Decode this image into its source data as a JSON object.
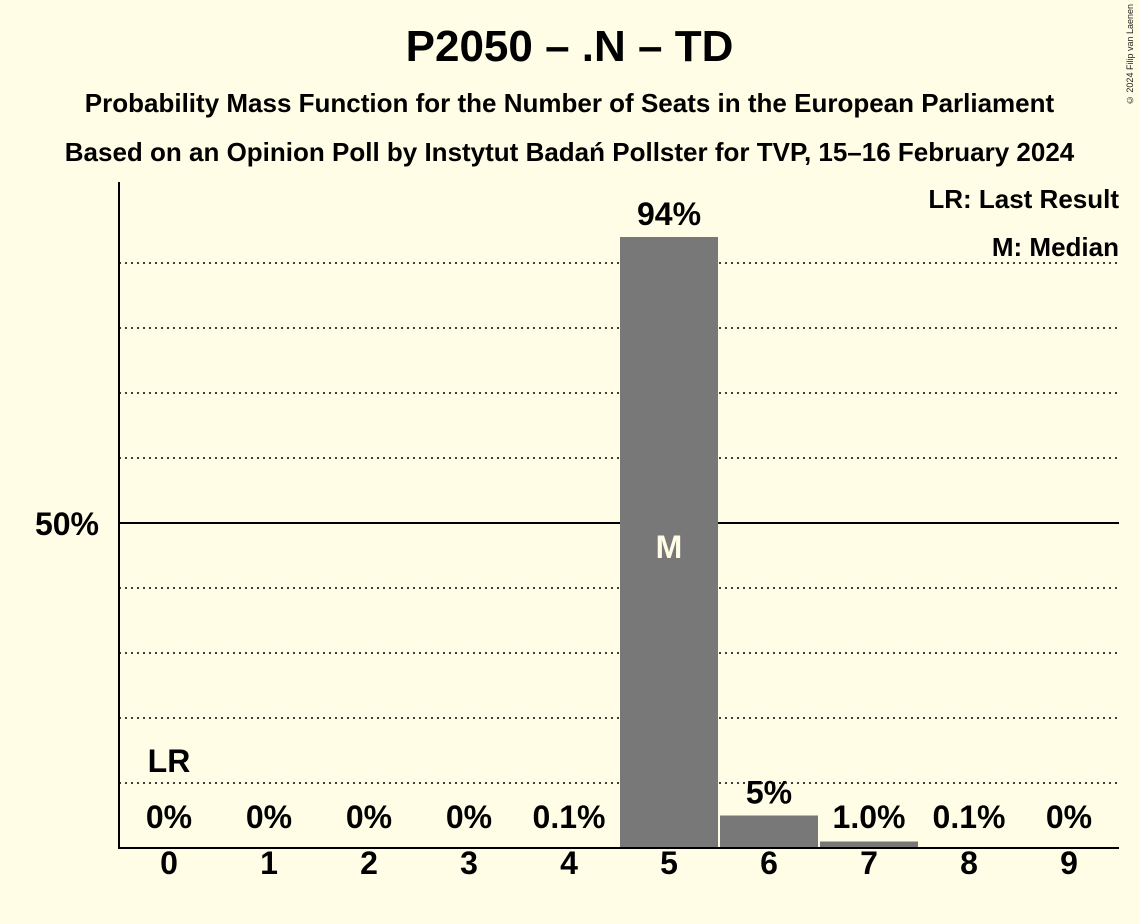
{
  "chart_data": {
    "type": "bar",
    "title": "P2050 – .N – TD",
    "subtitle": "Probability Mass Function for the Number of Seats in the European Parliament",
    "subtitle2": "Based on an Opinion Poll by Instytut Badań Pollster for TVP, 15–16 February 2024",
    "copyright": "© 2024 Filip van Laenen",
    "legend": {
      "last_result": "LR: Last Result",
      "median": "M: Median",
      "placement": "top-right"
    },
    "categories": [
      "0",
      "1",
      "2",
      "3",
      "4",
      "5",
      "6",
      "7",
      "8",
      "9"
    ],
    "values": [
      0,
      0,
      0,
      0,
      0.1,
      94,
      5,
      1.0,
      0.1,
      0
    ],
    "value_labels": [
      "0%",
      "0%",
      "0%",
      "0%",
      "0.1%",
      "94%",
      "5%",
      "1.0%",
      "0.1%",
      "0%"
    ],
    "ylim": [
      0,
      100
    ],
    "y_tick_label": "50%",
    "y_tick_value": 50,
    "gridlines": [
      10,
      20,
      30,
      40,
      60,
      70,
      80,
      90
    ],
    "last_result_seat": 0,
    "last_result_label": "LR",
    "median_seat": 5,
    "median_label": "M",
    "colors": {
      "bar": "#787878",
      "background": "#fffde6",
      "median_text": "#fffde6"
    }
  }
}
